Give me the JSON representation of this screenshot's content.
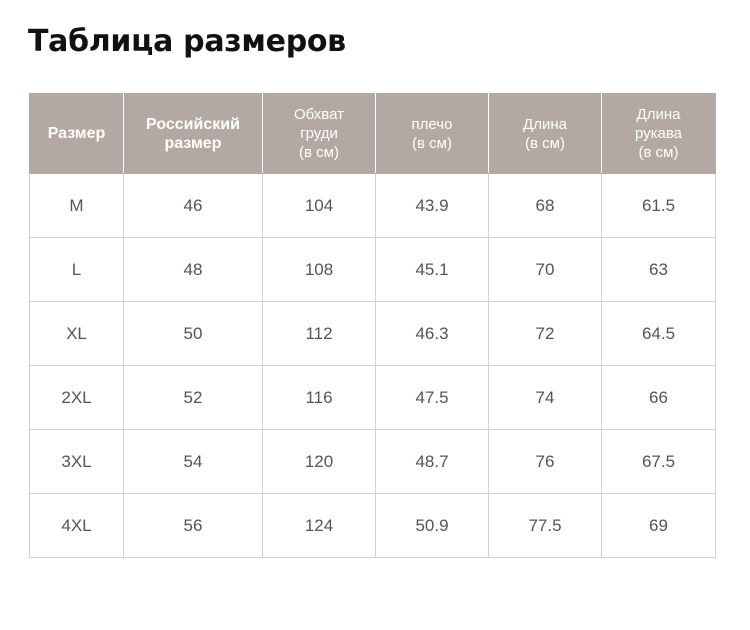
{
  "title": "Таблица размеров",
  "table": {
    "headers": [
      {
        "label": "Размер",
        "bold": true
      },
      {
        "label": "Российский\nразмер",
        "bold": true
      },
      {
        "label": "Обхват\nгруди\n(в см)",
        "bold": false
      },
      {
        "label": "плечо\n(в см)",
        "bold": false
      },
      {
        "label": "Длина\n(в см)",
        "bold": false
      },
      {
        "label": "Длина\nрукава\n(в см)",
        "bold": false
      }
    ],
    "rows": [
      [
        "M",
        "46",
        "104",
        "43.9",
        "68",
        "61.5"
      ],
      [
        "L",
        "48",
        "108",
        "45.1",
        "70",
        "63"
      ],
      [
        "XL",
        "50",
        "112",
        "46.3",
        "72",
        "64.5"
      ],
      [
        "2XL",
        "52",
        "116",
        "47.5",
        "74",
        "66"
      ],
      [
        "3XL",
        "54",
        "120",
        "48.7",
        "76",
        "67.5"
      ],
      [
        "4XL",
        "56",
        "124",
        "50.9",
        "77.5",
        "69"
      ]
    ]
  },
  "colors": {
    "header_background": "#b3a9a2",
    "header_text": "#ffffff",
    "cell_text": "#555555",
    "border": "#d2d2d2"
  }
}
